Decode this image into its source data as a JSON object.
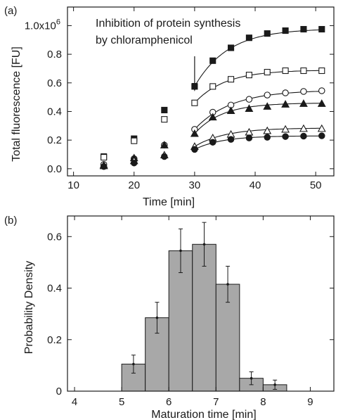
{
  "chart_data": [
    {
      "panel": "(a)",
      "type": "scatter",
      "title": "",
      "xlabel": "Time [min]",
      "ylabel": "Total fluorescence [FU]",
      "xlim": [
        9,
        53
      ],
      "ylim": [
        -0.05,
        1.13
      ],
      "x_ticks": [
        10,
        20,
        30,
        40,
        50
      ],
      "y_ticks": [
        {
          "value": 0.0,
          "label": "0.0"
        },
        {
          "value": 0.2,
          "label": "0.2"
        },
        {
          "value": 0.4,
          "label": "0.4"
        },
        {
          "value": 0.6,
          "label": "0.6"
        },
        {
          "value": 0.8,
          "label": "0.8"
        }
      ],
      "y_top_label_base": "1.0x10",
      "y_top_label_exp": "6",
      "y_top_label_value": 1.0,
      "grid": false,
      "annotation": {
        "lines": [
          "Inhibition of protein synthesis",
          "by chloramphenicol"
        ],
        "arrow_x": 30
      },
      "series": [
        {
          "marker": "square-filled",
          "x": [
            15,
            20,
            25,
            30,
            33,
            36,
            39,
            42,
            45,
            48,
            51
          ],
          "y": [
            0.085,
            0.21,
            0.41,
            0.575,
            0.755,
            0.845,
            0.915,
            0.945,
            0.965,
            0.975,
            0.975
          ]
        },
        {
          "marker": "square-open",
          "x": [
            15,
            20,
            25,
            30,
            33,
            36,
            39,
            42,
            45,
            48,
            51
          ],
          "y": [
            0.08,
            0.195,
            0.345,
            0.46,
            0.575,
            0.625,
            0.655,
            0.675,
            0.685,
            0.685,
            0.685
          ]
        },
        {
          "marker": "circle-open",
          "x": [
            15,
            20,
            25,
            30,
            33,
            36,
            39,
            42,
            45,
            48,
            51
          ],
          "y": [
            0.03,
            0.07,
            0.165,
            0.275,
            0.395,
            0.445,
            0.485,
            0.515,
            0.53,
            0.54,
            0.545
          ]
        },
        {
          "marker": "triangle-filled",
          "x": [
            15,
            20,
            25,
            30,
            33,
            36,
            39,
            42,
            45,
            48,
            51
          ],
          "y": [
            0.025,
            0.075,
            0.165,
            0.245,
            0.36,
            0.405,
            0.42,
            0.435,
            0.45,
            0.455,
            0.455
          ]
        },
        {
          "marker": "triangle-open",
          "x": [
            15,
            20,
            25,
            30,
            33,
            36,
            39,
            42,
            45,
            48,
            51
          ],
          "y": [
            0.02,
            0.055,
            0.095,
            0.155,
            0.215,
            0.24,
            0.255,
            0.265,
            0.275,
            0.28,
            0.28
          ]
        },
        {
          "marker": "circle-filled",
          "x": [
            15,
            20,
            25,
            30,
            33,
            36,
            39,
            42,
            45,
            48,
            51
          ],
          "y": [
            0.015,
            0.04,
            0.085,
            0.135,
            0.185,
            0.205,
            0.215,
            0.22,
            0.225,
            0.228,
            0.23
          ]
        }
      ],
      "fits": [
        {
          "x0": 30,
          "y0": 0.575,
          "ymax": 0.98,
          "tau": 5.5
        },
        {
          "x0": 30,
          "y0": 0.46,
          "ymax": 0.69,
          "tau": 5.0
        },
        {
          "x0": 30,
          "y0": 0.275,
          "ymax": 0.55,
          "tau": 6.0
        },
        {
          "x0": 30,
          "y0": 0.245,
          "ymax": 0.46,
          "tau": 4.5
        },
        {
          "x0": 30,
          "y0": 0.155,
          "ymax": 0.285,
          "tau": 5.0
        },
        {
          "x0": 30,
          "y0": 0.135,
          "ymax": 0.23,
          "tau": 4.5
        }
      ]
    },
    {
      "panel": "(b)",
      "type": "bar",
      "title": "",
      "xlabel": "Maturation time [min]",
      "ylabel": "Probability Density",
      "xlim": [
        3.85,
        9.5
      ],
      "ylim": [
        0,
        0.68
      ],
      "x_ticks": [
        4,
        5,
        6,
        7,
        8,
        9
      ],
      "y_ticks": [
        {
          "value": 0,
          "label": "0"
        },
        {
          "value": 0.2,
          "label": "0.2"
        },
        {
          "value": 0.4,
          "label": "0.4"
        },
        {
          "value": 0.6,
          "label": "0.6"
        }
      ],
      "grid": false,
      "bin_width": 0.5,
      "bins": [
        {
          "left": 5.0,
          "value": 0.105,
          "err": 0.035
        },
        {
          "left": 5.5,
          "value": 0.285,
          "err": 0.06
        },
        {
          "left": 6.0,
          "value": 0.545,
          "err": 0.085
        },
        {
          "left": 6.5,
          "value": 0.57,
          "err": 0.085
        },
        {
          "left": 7.0,
          "value": 0.415,
          "err": 0.07
        },
        {
          "left": 7.5,
          "value": 0.05,
          "err": 0.025
        },
        {
          "left": 8.0,
          "value": 0.025,
          "err": 0.018
        }
      ]
    }
  ]
}
